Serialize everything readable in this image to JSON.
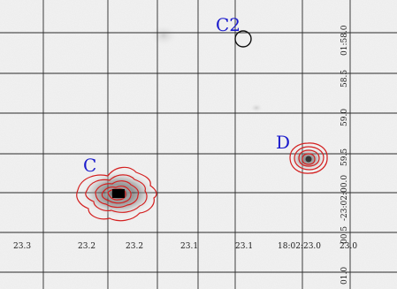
{
  "image": {
    "ra_ticks": [
      "23.3",
      "23.2",
      "23.2",
      "23.1",
      "23.1",
      "18:02:23.0",
      "23.0"
    ],
    "dec_ticks": [
      "01:58.0",
      "58.5",
      "59.0",
      "59.5",
      "-23:02:00.0",
      "00.5",
      "01.0"
    ],
    "sources": {
      "C": {
        "label": "C"
      },
      "C2": {
        "label": "C2"
      },
      "D": {
        "label": "D"
      }
    },
    "colors": {
      "contour": "#d42020",
      "source_label": "#1a1acc",
      "grid": "#2a2a2a",
      "marker": "#111111"
    }
  }
}
